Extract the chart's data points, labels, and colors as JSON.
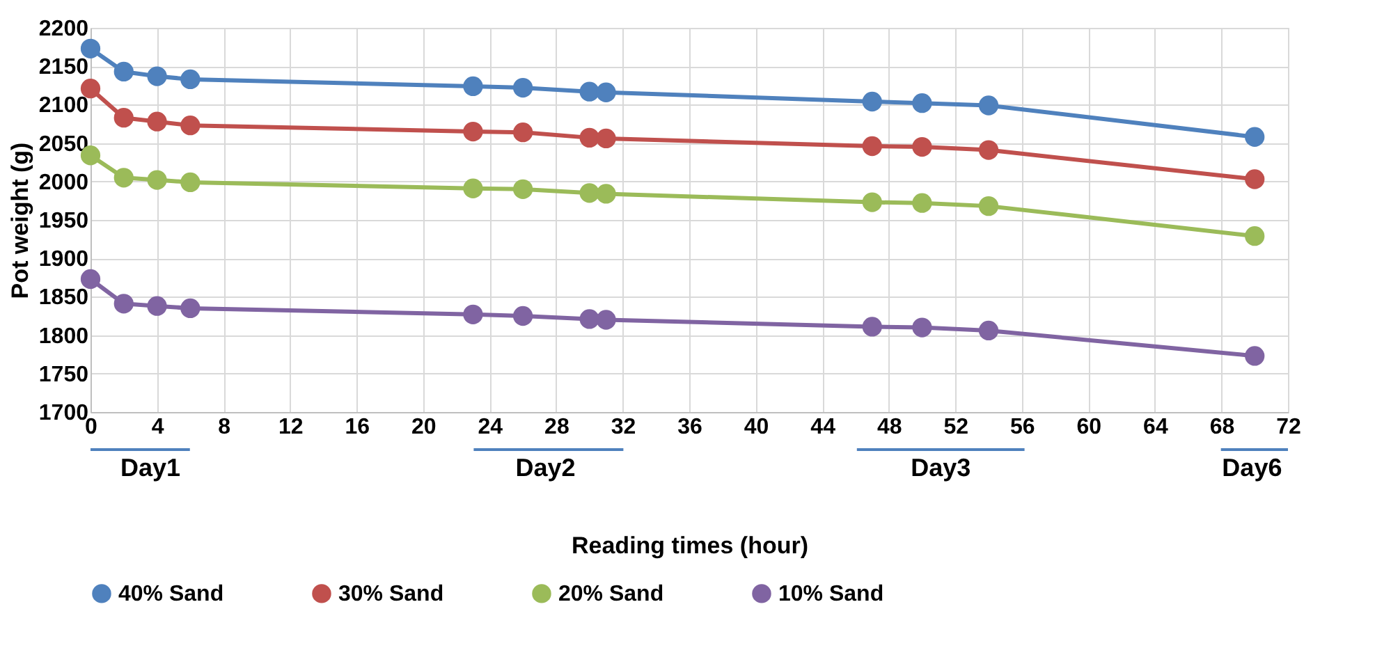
{
  "chart_data": {
    "type": "line",
    "xlabel": "Reading times (hour)",
    "ylabel": "Pot weight (g)",
    "x": [
      0,
      2,
      4,
      6,
      23,
      26,
      30,
      31,
      47,
      50,
      54,
      70
    ],
    "series": [
      {
        "name": "40% Sand",
        "color": "#4f81bd",
        "values": [
          2173,
          2143,
          2137,
          2133,
          2124,
          2122,
          2117,
          2116,
          2104,
          2102,
          2099,
          2058
        ]
      },
      {
        "name": "30% Sand",
        "color": "#c0504d",
        "values": [
          2121,
          2083,
          2078,
          2073,
          2065,
          2064,
          2057,
          2056,
          2046,
          2045,
          2041,
          2003
        ]
      },
      {
        "name": "20% Sand",
        "color": "#9bbb59",
        "values": [
          2034,
          2005,
          2002,
          1999,
          1991,
          1990,
          1985,
          1984,
          1973,
          1972,
          1968,
          1929
        ]
      },
      {
        "name": "10% Sand",
        "color": "#8064a2",
        "values": [
          1873,
          1841,
          1838,
          1835,
          1827,
          1825,
          1821,
          1820,
          1811,
          1810,
          1806,
          1773
        ]
      }
    ],
    "xlim": [
      0,
      72
    ],
    "xticks": [
      0,
      4,
      8,
      12,
      16,
      20,
      24,
      28,
      32,
      36,
      40,
      44,
      48,
      52,
      56,
      60,
      64,
      68,
      72
    ],
    "ylim": [
      1700,
      2200
    ],
    "yticks": [
      1700,
      1750,
      1800,
      1850,
      1900,
      1950,
      2000,
      2050,
      2100,
      2150,
      2200
    ],
    "annotations": [
      "Day1",
      "Day2",
      "Day3",
      "Day6"
    ],
    "grid": true,
    "legend": "bottom",
    "marker": "circle",
    "line_style": "solid"
  }
}
